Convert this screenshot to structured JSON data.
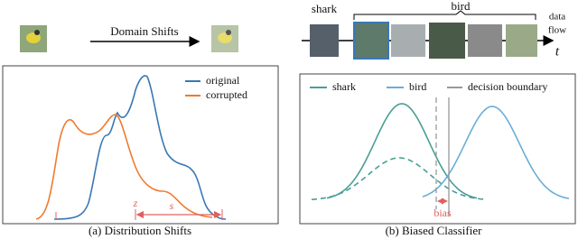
{
  "panel_a": {
    "arrow_label": "Domain Shifts",
    "legend": [
      "original",
      "corrupted"
    ],
    "annotations": [
      "z",
      "s"
    ],
    "caption": "(a) Distribution Shifts"
  },
  "panel_b": {
    "group_labels": [
      "shark",
      "bird"
    ],
    "flow_label": [
      "data",
      "flow"
    ],
    "time_label": "t",
    "legend": [
      "shark",
      "bird",
      "decision boundary"
    ],
    "annotation": "bias",
    "caption": "(b) Biased Classifier"
  }
}
